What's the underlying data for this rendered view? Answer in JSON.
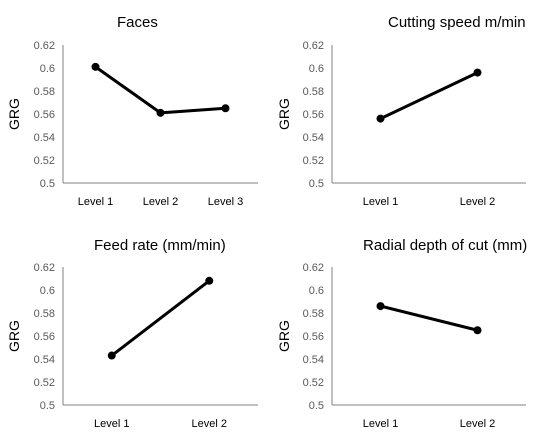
{
  "chart_data": [
    {
      "type": "line",
      "title": "Faces",
      "ylabel": "GRG",
      "xlabel": "",
      "categories": [
        "Level 1",
        "Level 2",
        "Level 3"
      ],
      "values": [
        0.601,
        0.561,
        0.565
      ],
      "ylim": [
        0.5,
        0.62
      ],
      "yticks": [
        "0.5",
        "0.52",
        "0.54",
        "0.56",
        "0.58",
        "0.6",
        "0.62"
      ],
      "grid": false,
      "color": "#000000"
    },
    {
      "type": "line",
      "title": "Cutting speed m/min",
      "ylabel": "GRG",
      "xlabel": "",
      "categories": [
        "Level 1",
        "Level 2"
      ],
      "values": [
        0.556,
        0.596
      ],
      "ylim": [
        0.5,
        0.62
      ],
      "yticks": [
        "0.5",
        "0.52",
        "0.54",
        "0.56",
        "0.58",
        "0.6",
        "0.62"
      ],
      "grid": false,
      "color": "#000000"
    },
    {
      "type": "line",
      "title": "Feed rate (mm/min)",
      "ylabel": "GRG",
      "xlabel": "",
      "categories": [
        "Level 1",
        "Level 2"
      ],
      "values": [
        0.543,
        0.608
      ],
      "ylim": [
        0.5,
        0.62
      ],
      "yticks": [
        "0.5",
        "0.52",
        "0.54",
        "0.56",
        "0.58",
        "0.6",
        "0.62"
      ],
      "grid": false,
      "color": "#000000"
    },
    {
      "type": "line",
      "title": "Radial depth of cut (mm)",
      "ylabel": "GRG",
      "xlabel": "",
      "categories": [
        "Level 1",
        "Level 2"
      ],
      "values": [
        0.586,
        0.565
      ],
      "ylim": [
        0.5,
        0.62
      ],
      "yticks": [
        "0.5",
        "0.52",
        "0.54",
        "0.56",
        "0.58",
        "0.6",
        "0.62"
      ],
      "grid": false,
      "color": "#000000"
    }
  ]
}
